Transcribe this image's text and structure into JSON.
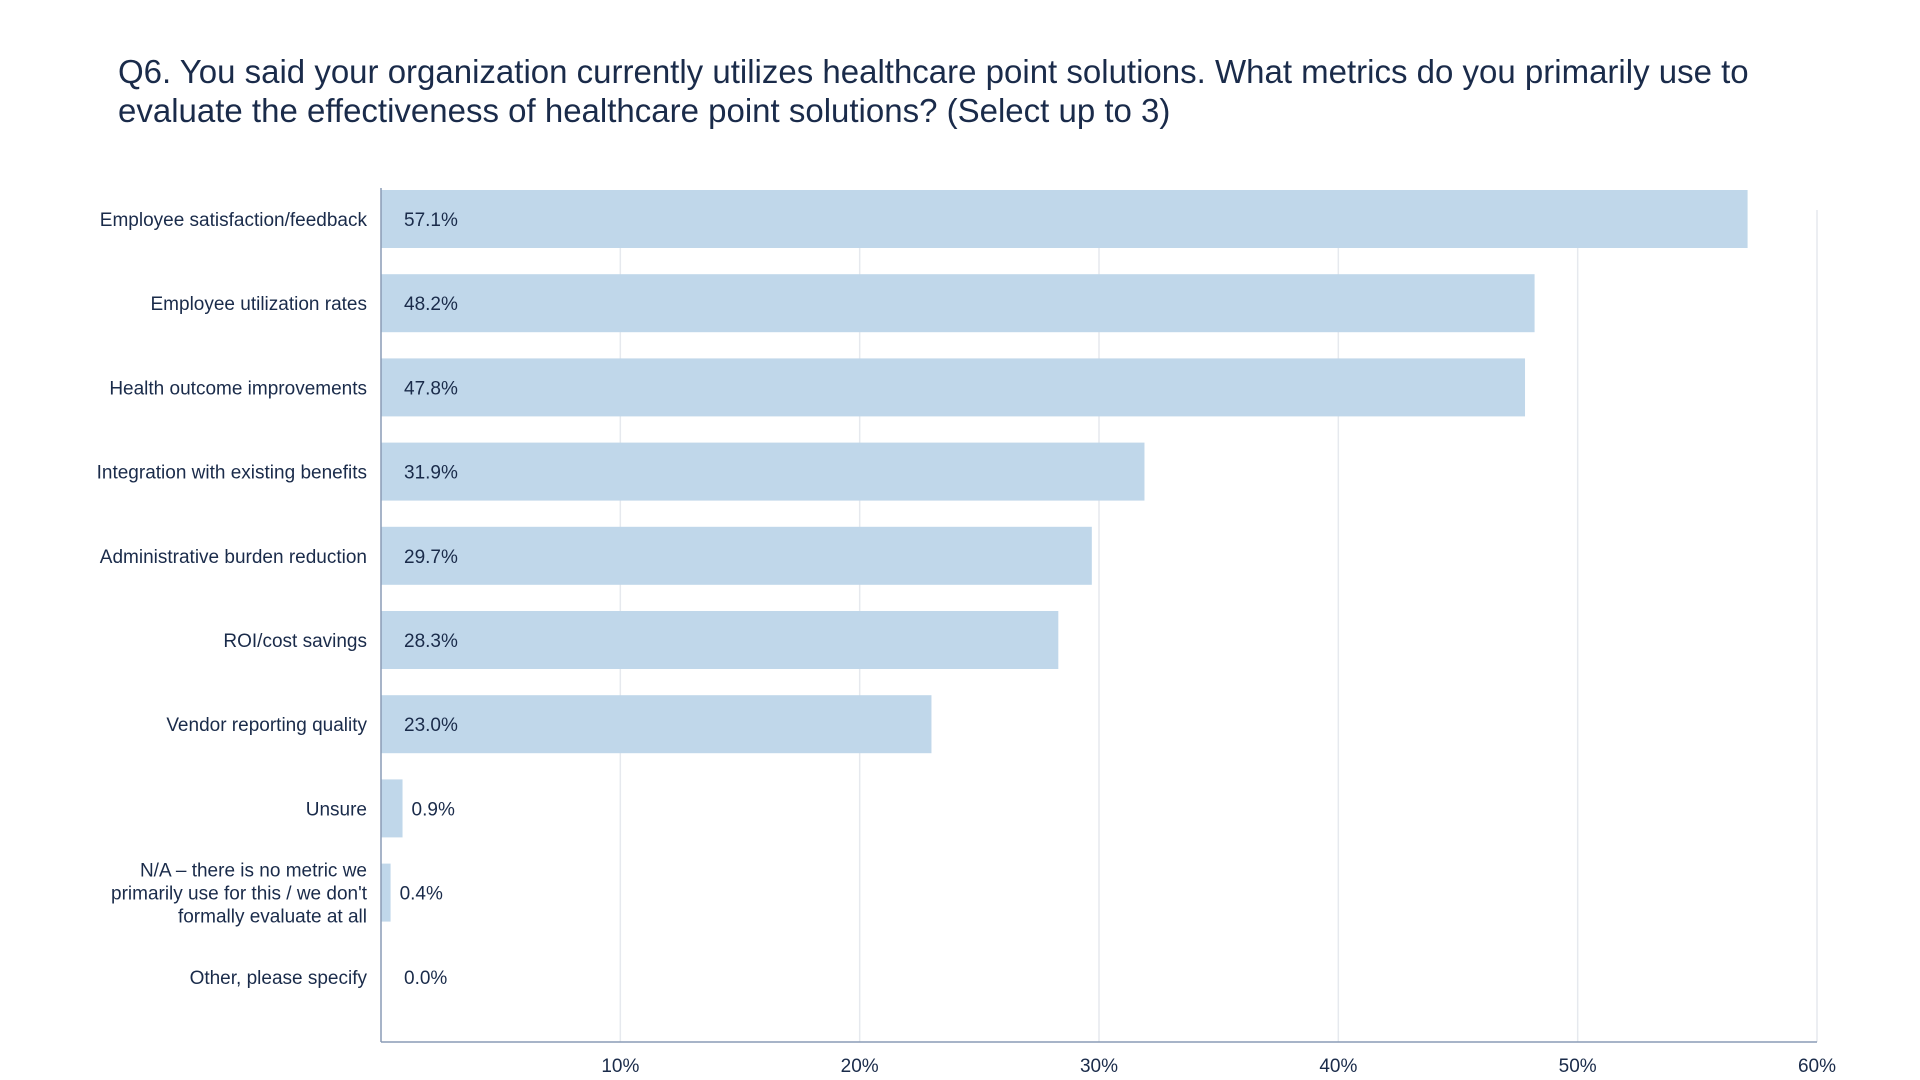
{
  "chart_data": {
    "type": "bar",
    "orientation": "horizontal",
    "title": "Q6. You said your organization currently utilizes healthcare point solutions. What metrics do you primarily use to evaluate the effectiveness of healthcare point solutions? (Select up to 3)",
    "categories": [
      [
        "Employee satisfaction/feedback"
      ],
      [
        "Employee utilization rates"
      ],
      [
        "Health outcome improvements"
      ],
      [
        "Integration with existing benefits"
      ],
      [
        "Administrative burden reduction"
      ],
      [
        "ROI/cost savings"
      ],
      [
        "Vendor reporting quality"
      ],
      [
        "Unsure"
      ],
      [
        "N/A – there is no metric we",
        "primarily use for this / we don't",
        "formally evaluate at all"
      ],
      [
        "Other, please specify"
      ]
    ],
    "values": [
      57.1,
      48.2,
      47.8,
      31.9,
      29.7,
      28.3,
      23.0,
      0.9,
      0.4,
      0.0
    ],
    "value_labels": [
      "57.1%",
      "48.2%",
      "47.8%",
      "31.9%",
      "29.7%",
      "28.3%",
      "23.0%",
      "0.9%",
      "0.4%",
      "0.0%"
    ],
    "xlim": [
      0,
      60
    ],
    "xticks": [
      10,
      20,
      30,
      40,
      50,
      60
    ],
    "xtick_labels": [
      "10%",
      "20%",
      "30%",
      "40%",
      "50%",
      "60%"
    ],
    "grid": true,
    "bar_color": "#c0d7ea",
    "grid_color": "#e6e9ee",
    "axis_color": "#8a9bb5"
  }
}
